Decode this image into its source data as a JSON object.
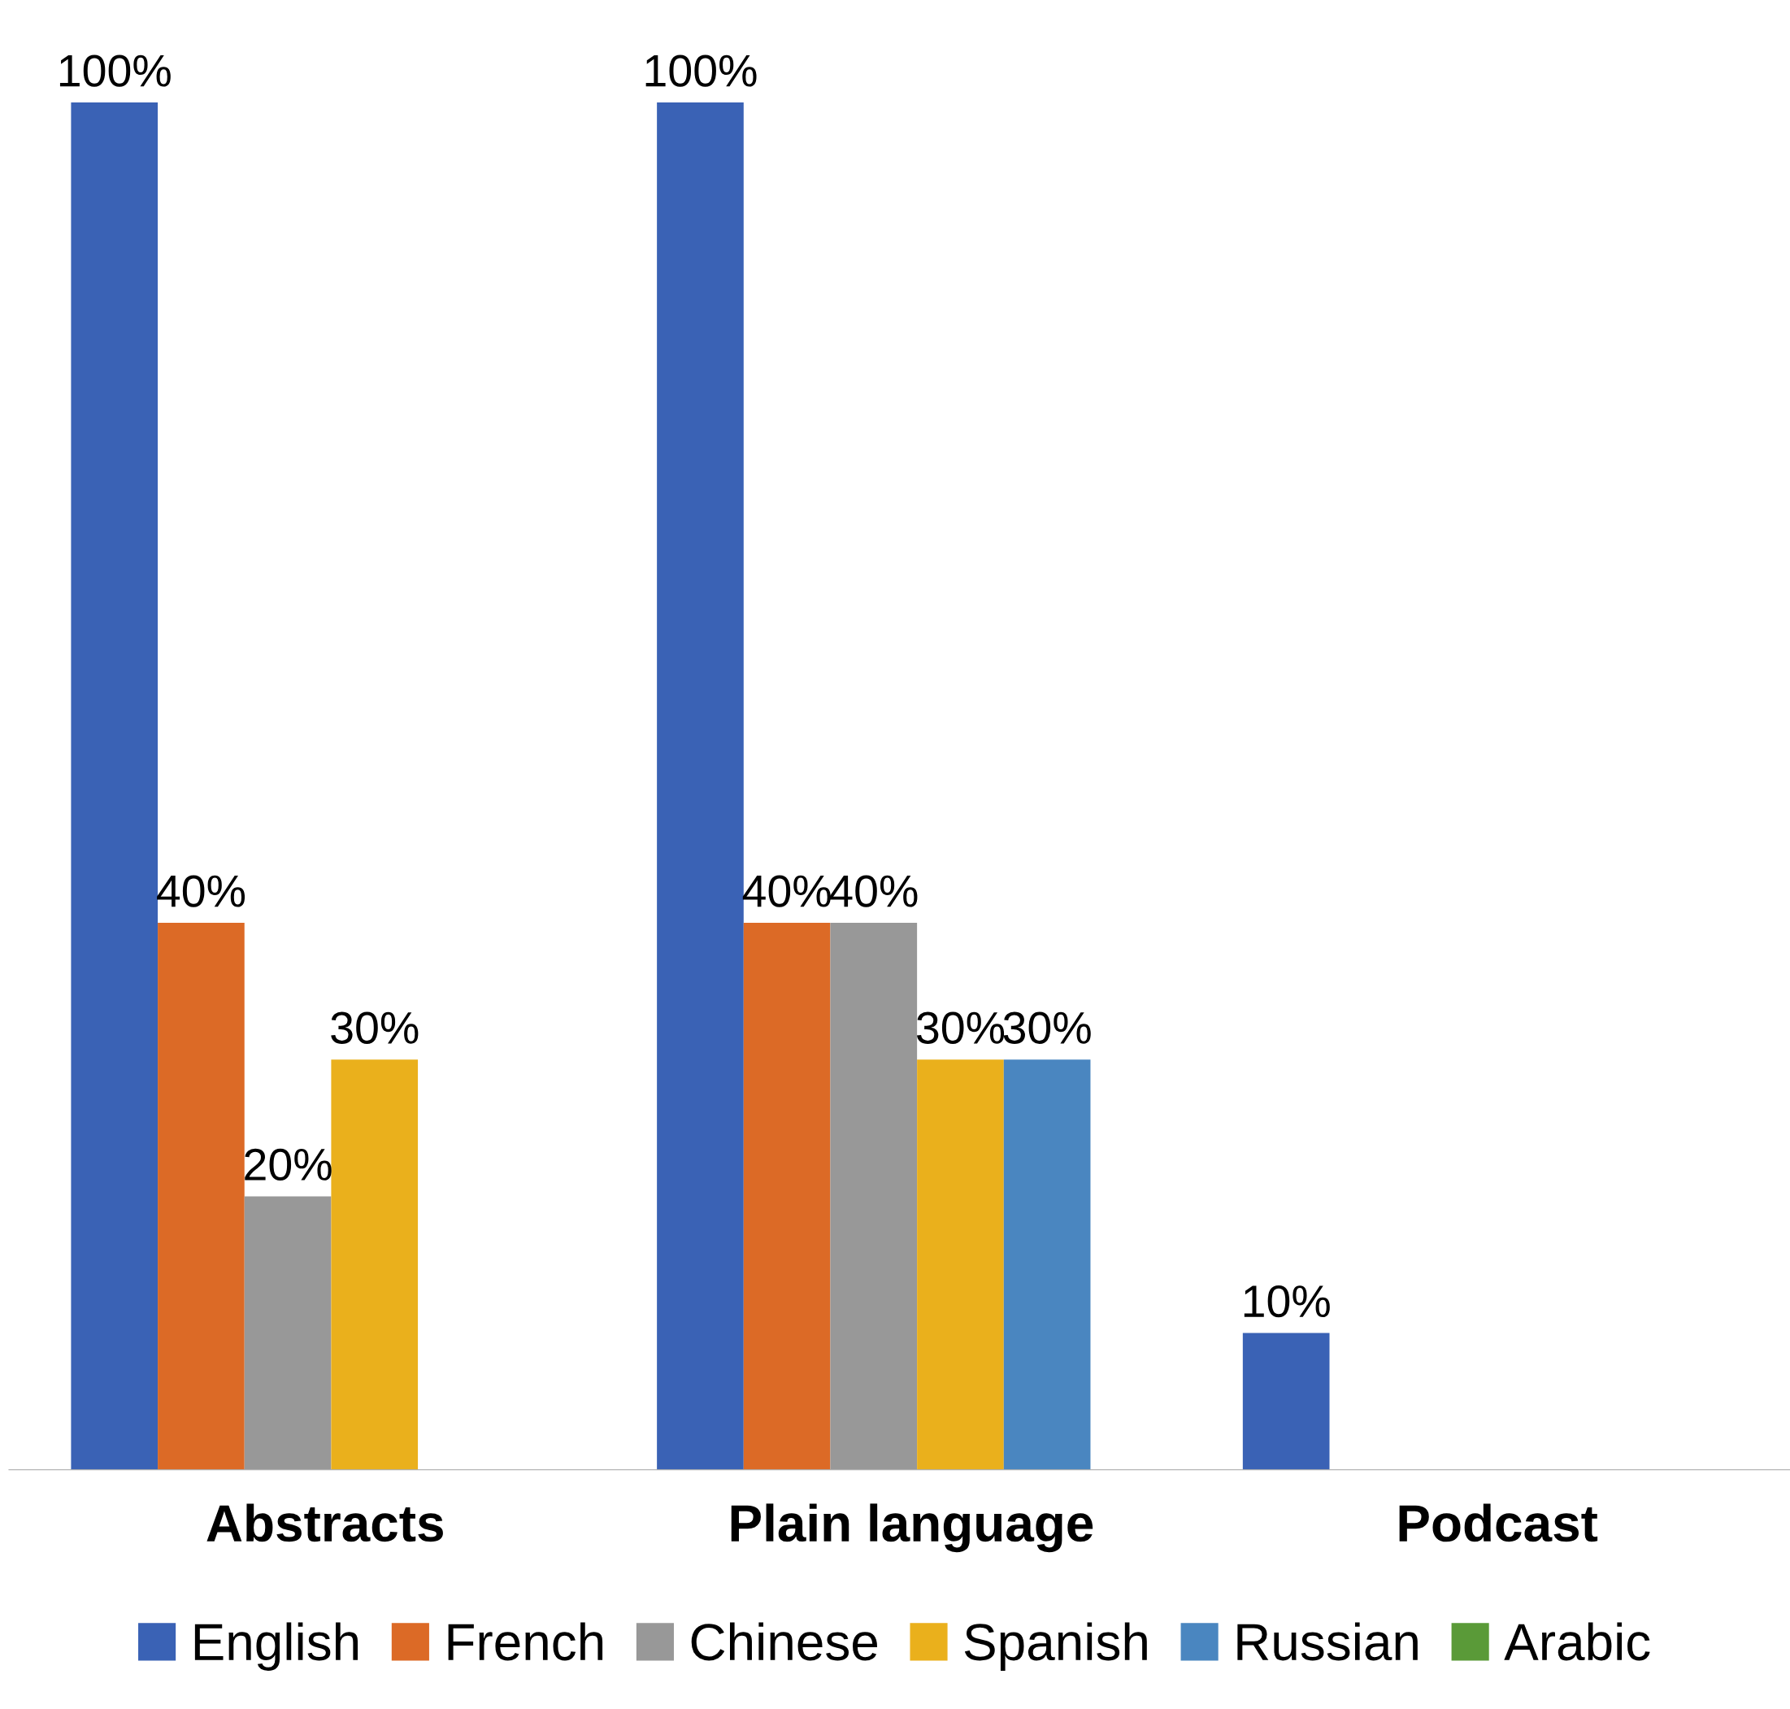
{
  "chart_data": {
    "type": "bar",
    "categories": [
      "Abstracts",
      "Plain language",
      "Podcast"
    ],
    "series": [
      {
        "name": "English",
        "color": "#3a62b5",
        "values": [
          100,
          100,
          10
        ],
        "value_labels": [
          "100%",
          "100%",
          "10%"
        ]
      },
      {
        "name": "French",
        "color": "#dc6a26",
        "values": [
          40,
          40,
          null
        ],
        "value_labels": [
          "40%",
          "40%",
          null
        ]
      },
      {
        "name": "Chinese",
        "color": "#989898",
        "values": [
          20,
          40,
          null
        ],
        "value_labels": [
          "20%",
          "40%",
          null
        ]
      },
      {
        "name": "Spanish",
        "color": "#eab01c",
        "values": [
          30,
          30,
          null
        ],
        "value_labels": [
          "30%",
          "30%",
          null
        ]
      },
      {
        "name": "Russian",
        "color": "#4a86c0",
        "values": [
          null,
          30,
          null
        ],
        "value_labels": [
          null,
          "30%",
          null
        ]
      },
      {
        "name": "Arabic",
        "color": "#5a9a38",
        "values": [
          null,
          null,
          null
        ]
      }
    ],
    "legend": "bottom",
    "grid": false,
    "tick_labels": "x"
  }
}
